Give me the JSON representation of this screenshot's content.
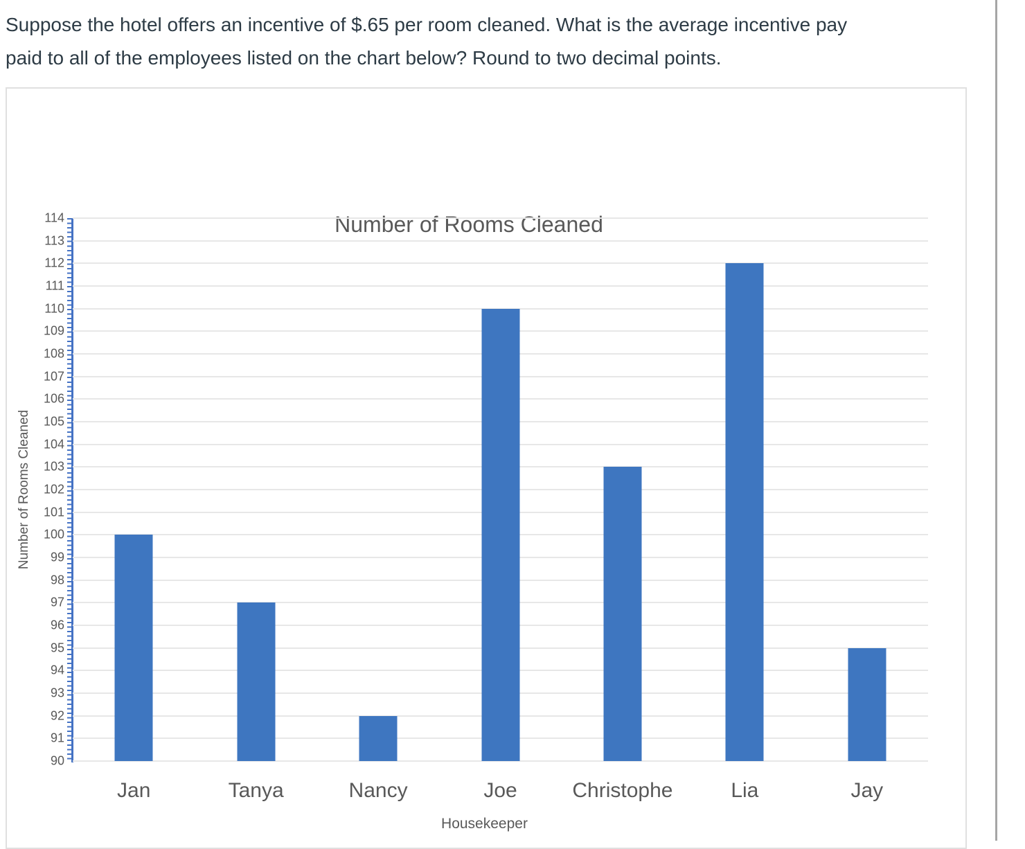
{
  "question": {
    "line1": "Suppose the hotel offers an incentive of $.65 per room cleaned. What is the average incentive pay",
    "line2": "paid to all of the employees listed on the chart below? Round to two decimal points."
  },
  "chart_data": {
    "type": "bar",
    "title": "Number of Rooms Cleaned",
    "categories": [
      "Jan",
      "Tanya",
      "Nancy",
      "Joe",
      "Christophe",
      "Lia",
      "Jay"
    ],
    "values": [
      100,
      97,
      92,
      110,
      103,
      112,
      95
    ],
    "xlabel": "Housekeeper",
    "ylabel": "Number of Rooms Cleaned",
    "ylim": [
      90,
      114
    ],
    "ytick_step": 1,
    "grid": true,
    "legend_position": "none",
    "bar_color": "#3e76c0",
    "axis_color": "#4472c4",
    "gridline_color": "#e7e7e7",
    "text_color": "#595959"
  }
}
